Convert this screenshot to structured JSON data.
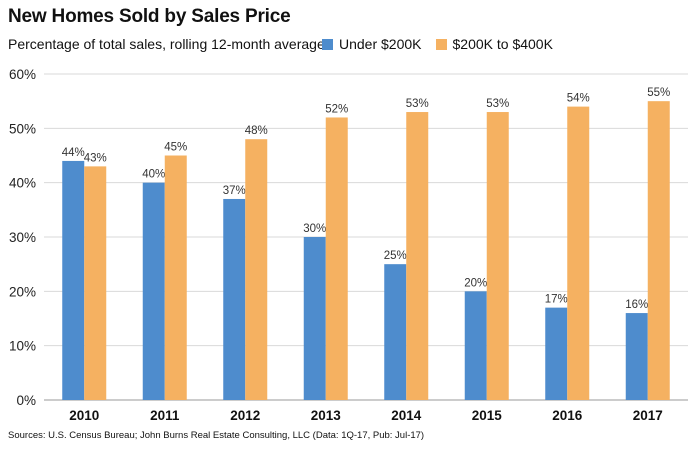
{
  "chart_data": {
    "type": "bar",
    "title": "New Homes Sold by Sales Price",
    "subtitle": "Percentage of total sales, rolling 12-month average",
    "categories": [
      "2010",
      "2011",
      "2012",
      "2013",
      "2014",
      "2015",
      "2016",
      "2017"
    ],
    "series": [
      {
        "name": "Under $200K",
        "color": "#4e8ccd",
        "values": [
          44,
          40,
          37,
          30,
          25,
          20,
          17,
          16
        ],
        "labels": [
          "44%",
          "40%",
          "37%",
          "30%",
          "25%",
          "20%",
          "17%",
          "16%"
        ]
      },
      {
        "name": "$200K to $400K",
        "color": "#f5b161",
        "values": [
          43,
          45,
          48,
          52,
          53,
          53,
          54,
          55
        ],
        "labels": [
          "43%",
          "45%",
          "48%",
          "52%",
          "53%",
          "53%",
          "54%",
          "55%"
        ]
      }
    ],
    "ylim": [
      0,
      60
    ],
    "yticks": [
      0,
      10,
      20,
      30,
      40,
      50,
      60
    ],
    "ytick_labels": [
      "0%",
      "10%",
      "20%",
      "30%",
      "40%",
      "50%",
      "60%"
    ],
    "grid": true,
    "legend": "top-right",
    "source": "Sources: U.S. Census Bureau; John Burns Real Estate Consulting, LLC (Data: 1Q-17, Pub: Jul-17)"
  }
}
